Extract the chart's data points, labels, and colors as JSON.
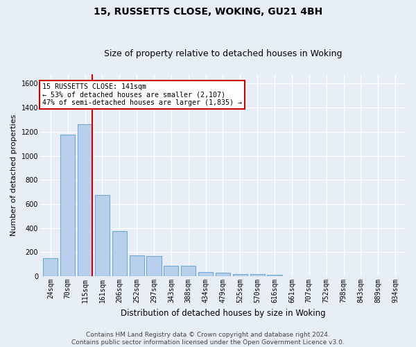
{
  "title1": "15, RUSSETTS CLOSE, WOKING, GU21 4BH",
  "title2": "Size of property relative to detached houses in Woking",
  "xlabel": "Distribution of detached houses by size in Woking",
  "ylabel": "Number of detached properties",
  "bar_labels": [
    "24sqm",
    "70sqm",
    "115sqm",
    "161sqm",
    "206sqm",
    "252sqm",
    "297sqm",
    "343sqm",
    "388sqm",
    "434sqm",
    "479sqm",
    "525sqm",
    "570sqm",
    "616sqm",
    "661sqm",
    "707sqm",
    "752sqm",
    "798sqm",
    "843sqm",
    "889sqm",
    "934sqm"
  ],
  "bar_values": [
    150,
    1175,
    1260,
    675,
    375,
    175,
    170,
    90,
    90,
    35,
    28,
    20,
    18,
    15,
    0,
    0,
    0,
    0,
    0,
    0,
    0
  ],
  "bar_color": "#b8d0eb",
  "bar_edgecolor": "#6ea8d8",
  "bg_color": "#e8eef8",
  "grid_color": "#d0d8e8",
  "red_line_x": 2.42,
  "annotation_text": "15 RUSSETTS CLOSE: 141sqm\n← 53% of detached houses are smaller (2,107)\n47% of semi-detached houses are larger (1,835) →",
  "annotation_box_color": "#cc0000",
  "ylim": [
    0,
    1680
  ],
  "yticks": [
    0,
    200,
    400,
    600,
    800,
    1000,
    1200,
    1400,
    1600
  ],
  "footer": "Contains HM Land Registry data © Crown copyright and database right 2024.\nContains public sector information licensed under the Open Government Licence v3.0.",
  "title1_fontsize": 10,
  "title2_fontsize": 9,
  "ylabel_fontsize": 8,
  "xlabel_fontsize": 8.5,
  "tick_fontsize": 7,
  "footer_fontsize": 6.5
}
